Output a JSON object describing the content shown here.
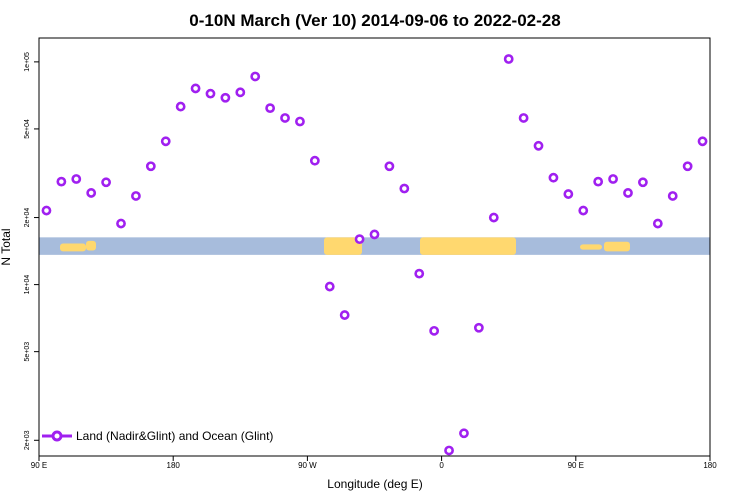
{
  "chart_data": {
    "type": "scatter",
    "title": "0-10N March (Ver 10)   2014-09-06 to 2022-02-28",
    "xlabel": "Longitude (deg E)",
    "ylabel": "N Total",
    "y_scale": "log",
    "ylim": [
      1700,
      128000
    ],
    "xlim": [
      90,
      540
    ],
    "x_ticks": [
      {
        "value": 90,
        "label": "90 E"
      },
      {
        "value": 180,
        "label": "180"
      },
      {
        "value": 270,
        "label": "90 W"
      },
      {
        "value": 360,
        "label": "0"
      },
      {
        "value": 450,
        "label": "90 E"
      },
      {
        "value": 540,
        "label": "180"
      }
    ],
    "y_ticks": [
      {
        "value": 2000,
        "label": "2e+03"
      },
      {
        "value": 5000,
        "label": "5e+03"
      },
      {
        "value": 10000,
        "label": "1e+04"
      },
      {
        "value": 20000,
        "label": "2e+04"
      },
      {
        "value": 50000,
        "label": "5e+04"
      },
      {
        "value": 100000,
        "label": "1e+05"
      }
    ],
    "series": [
      {
        "name": "Land (Nadir&Glint) and Ocean (Glint)",
        "color": "#a020f0",
        "x": [
          95,
          105,
          115,
          125,
          135,
          145,
          155,
          165,
          175,
          185,
          195,
          205,
          215,
          225,
          235,
          245,
          255,
          265,
          275,
          285,
          295,
          305,
          315,
          325,
          335,
          345,
          355,
          365,
          375,
          385,
          395,
          405,
          415,
          425,
          435,
          445,
          455,
          465,
          475,
          485,
          495,
          505,
          515,
          525,
          535
        ],
        "values": [
          21500,
          29000,
          29800,
          25800,
          28800,
          18800,
          25000,
          34000,
          44000,
          63000,
          76000,
          72000,
          69000,
          73000,
          86000,
          62000,
          56000,
          54000,
          36000,
          9800,
          7300,
          16000,
          16800,
          34000,
          27000,
          11200,
          6200,
          1800,
          2150,
          6400,
          20000,
          103000,
          56000,
          42000,
          30200,
          25500,
          21500,
          29000,
          29800,
          25800,
          28800,
          18800,
          25000,
          34000,
          44000
        ]
      }
    ],
    "legend": {
      "position": "bottom-left"
    },
    "background_map": {
      "value_low": 13600,
      "value_high": 16300,
      "ocean_color": "#a7bcdc",
      "land_color": "#ffd86f"
    }
  }
}
